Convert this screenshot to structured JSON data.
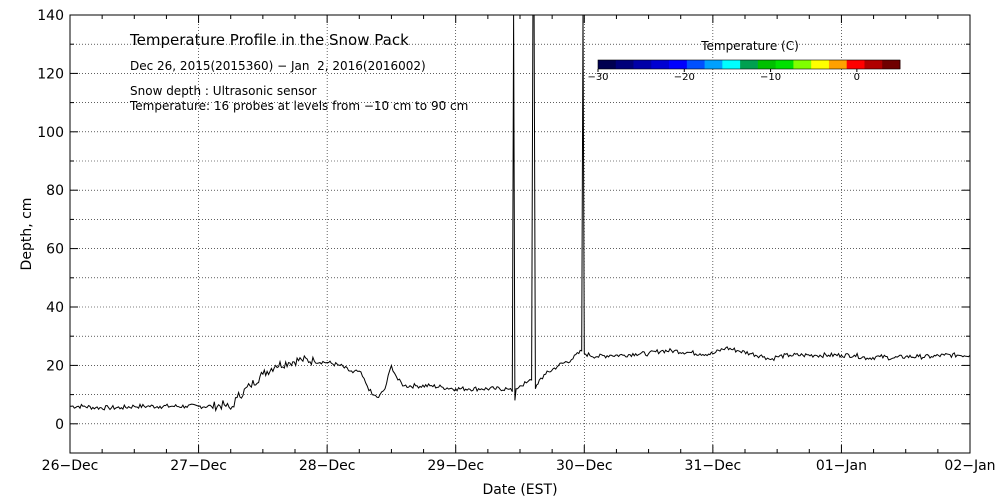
{
  "chart_data": {
    "type": "line",
    "title": "Temperature Profile in the Snow Pack",
    "subtitle": "Dec 26, 2015(2015360) − Jan  2, 2016(2016002)",
    "annotations": [
      "Snow depth : Ultrasonic sensor",
      "Temperature: 16 probes at levels from −10 cm to 90 cm"
    ],
    "xlabel": "Date (EST)",
    "ylabel": "Depth, cm",
    "x_tick_labels": [
      "26−Dec",
      "27−Dec",
      "28−Dec",
      "29−Dec",
      "30−Dec",
      "31−Dec",
      "01−Jan",
      "02−Jan"
    ],
    "x_unit": "days after 2015-12-26 00:00 EST",
    "xlim": [
      0,
      7
    ],
    "ylim": [
      -10,
      140
    ],
    "y_ticks": [
      0,
      20,
      40,
      60,
      80,
      100,
      120,
      140
    ],
    "grid": true,
    "colorbar": {
      "title": "Temperature (C)",
      "tick_labels": [
        "−30",
        "−20",
        "−10",
        "0"
      ],
      "tick_values": [
        -30,
        -20,
        -10,
        0
      ],
      "range": [
        -30,
        5
      ],
      "colors": [
        "#000050",
        "#00007a",
        "#0000a8",
        "#0000d2",
        "#0000ff",
        "#0050ff",
        "#00a0ff",
        "#00ffff",
        "#00a050",
        "#00c000",
        "#00e000",
        "#80ff00",
        "#ffff00",
        "#ffa000",
        "#ff0000",
        "#b00000",
        "#700000"
      ]
    },
    "series": [
      {
        "x": [
          0,
          0.1,
          0.2,
          0.3,
          0.4,
          0.5,
          0.6,
          0.7,
          0.8,
          0.9,
          1.0,
          1.1,
          1.2,
          1.25,
          1.3,
          1.4,
          1.5,
          1.6,
          1.7,
          1.8,
          1.9,
          2.0,
          2.1,
          2.2,
          2.25,
          2.3,
          2.35,
          2.4,
          2.45,
          2.5,
          2.55,
          2.6,
          2.7,
          2.8,
          2.9,
          3.0,
          3.1,
          3.2,
          3.3,
          3.4,
          3.44,
          3.45,
          3.46,
          3.47,
          3.5,
          3.55,
          3.59,
          3.6,
          3.61,
          3.62,
          3.65,
          3.7,
          3.8,
          3.9,
          3.98,
          3.99,
          4.0,
          4.1,
          4.2,
          4.3,
          4.4,
          4.5,
          4.6,
          4.7,
          4.8,
          4.9,
          5.0,
          5.1,
          5.2,
          5.3,
          5.4,
          5.45,
          5.5,
          5.6,
          5.7,
          5.8,
          5.9,
          6.0,
          6.1,
          6.2,
          6.3,
          6.4,
          6.5,
          6.6,
          6.7,
          6.8,
          6.9,
          7.0
        ],
        "y": [
          6,
          6,
          5.5,
          5.5,
          5.5,
          6,
          6,
          6,
          6,
          6,
          6,
          6,
          6.5,
          5,
          9,
          13,
          17,
          20,
          21,
          22,
          21.5,
          21,
          20,
          17.5,
          18,
          14,
          10,
          9,
          12,
          20,
          15,
          13,
          13,
          13,
          12.5,
          12,
          12,
          12,
          12,
          12,
          11,
          140,
          8,
          12,
          13,
          14,
          15,
          140,
          140,
          12,
          15,
          17,
          20,
          22,
          25,
          140,
          24,
          23,
          23.5,
          23.5,
          24,
          24,
          25,
          25,
          24.5,
          24,
          24,
          26,
          25,
          24,
          23,
          22,
          23,
          23.5,
          23.5,
          23.5,
          23.5,
          23.5,
          23.5,
          22.5,
          23,
          22.5,
          23,
          23,
          23,
          23.5,
          23.5,
          23.5
        ]
      }
    ]
  }
}
